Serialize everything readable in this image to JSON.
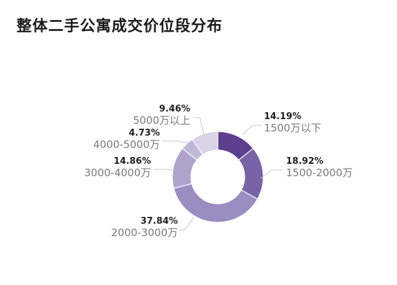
{
  "title": "整体二手公寓成交价位段分布",
  "chart_data": {
    "type": "pie",
    "variant": "donut",
    "title": "整体二手公寓成交价位段分布",
    "slices": [
      {
        "label": "1500万以下",
        "value": 14.19,
        "display": "14.19%",
        "color": "#5c3f8f"
      },
      {
        "label": "1500-2000万",
        "value": 18.92,
        "display": "18.92%",
        "color": "#7863a7"
      },
      {
        "label": "2000-3000万",
        "value": 37.84,
        "display": "37.84%",
        "color": "#9b8cc1"
      },
      {
        "label": "3000-4000万",
        "value": 14.86,
        "display": "14.86%",
        "color": "#afa3cc"
      },
      {
        "label": "4000-5000万",
        "value": 4.73,
        "display": "4.73%",
        "color": "#c1b8d9"
      },
      {
        "label": "5000万以上",
        "value": 9.46,
        "display": "9.46%",
        "color": "#d9d3e7"
      }
    ]
  }
}
